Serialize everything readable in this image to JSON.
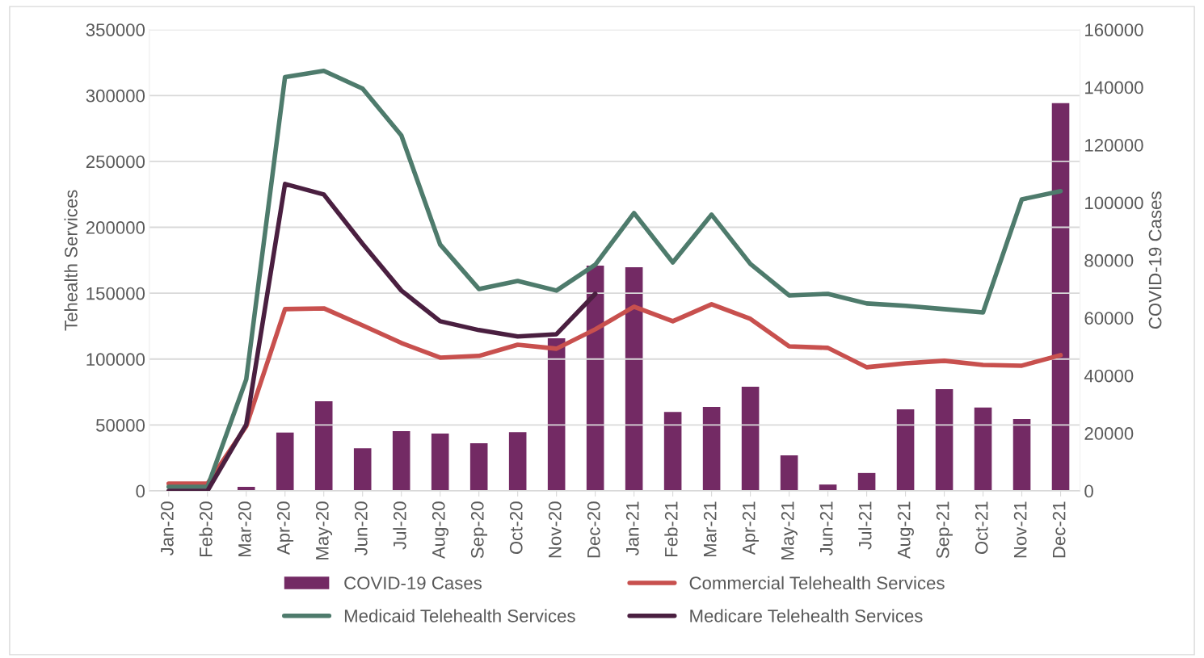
{
  "chart_data": {
    "type": "line",
    "categories": [
      "Jan-20",
      "Feb-20",
      "Mar-20",
      "Apr-20",
      "May-20",
      "Jun-20",
      "Jul-20",
      "Aug-20",
      "Sep-20",
      "Oct-20",
      "Nov-20",
      "Dec-20",
      "Jan-21",
      "Feb-21",
      "Mar-21",
      "Apr-21",
      "May-21",
      "Jun-21",
      "Jul-21",
      "Aug-21",
      "Sep-21",
      "Oct-21",
      "Nov-21",
      "Dec-21"
    ],
    "ylabel": "Tehealth Services",
    "y2label": "COVID-19 Cases",
    "ylim": [
      0,
      350000
    ],
    "yticks": [
      0,
      50000,
      100000,
      150000,
      200000,
      250000,
      300000,
      350000
    ],
    "y2lim": [
      0,
      160000
    ],
    "y2ticks": [
      0,
      20000,
      40000,
      60000,
      80000,
      100000,
      120000,
      140000,
      160000
    ],
    "grid": "y",
    "legend": "bottom",
    "line_style": "solid",
    "marker": "none",
    "series": [
      {
        "name": "COVID-19 Cases",
        "type": "bar",
        "axis": "y2",
        "color": "#732a64",
        "values": [
          0,
          0,
          1400,
          20200,
          31100,
          14800,
          20700,
          19900,
          16500,
          20400,
          52900,
          78100,
          77600,
          27400,
          29100,
          36100,
          12300,
          2200,
          6200,
          28300,
          35300,
          28900,
          24900,
          134500
        ]
      },
      {
        "name": "Commercial Telehealth Services",
        "color": "#c8504e",
        "values": [
          5500,
          5500,
          49000,
          137900,
          138500,
          125600,
          112200,
          101100,
          102400,
          110900,
          107900,
          122600,
          139700,
          128700,
          141600,
          130500,
          109700,
          108500,
          93800,
          96800,
          98700,
          95600,
          95000,
          103000
        ]
      },
      {
        "name": "Medicaid Telehealth Services",
        "color": "#4e7b6c",
        "values": [
          3000,
          3000,
          84600,
          314000,
          318700,
          305200,
          269700,
          186900,
          153200,
          159300,
          152000,
          171600,
          210800,
          173400,
          209600,
          172200,
          148300,
          149500,
          142200,
          140400,
          137900,
          135400,
          221200,
          227400
        ]
      },
      {
        "name": "Medicare Telehealth Services",
        "color": "#4a1f40",
        "values": [
          0,
          0,
          50300,
          232900,
          224900,
          187500,
          152000,
          128700,
          122000,
          117100,
          118900,
          149500,
          null,
          null,
          null,
          null,
          null,
          null,
          null,
          null,
          null,
          null,
          null,
          null
        ]
      }
    ]
  }
}
